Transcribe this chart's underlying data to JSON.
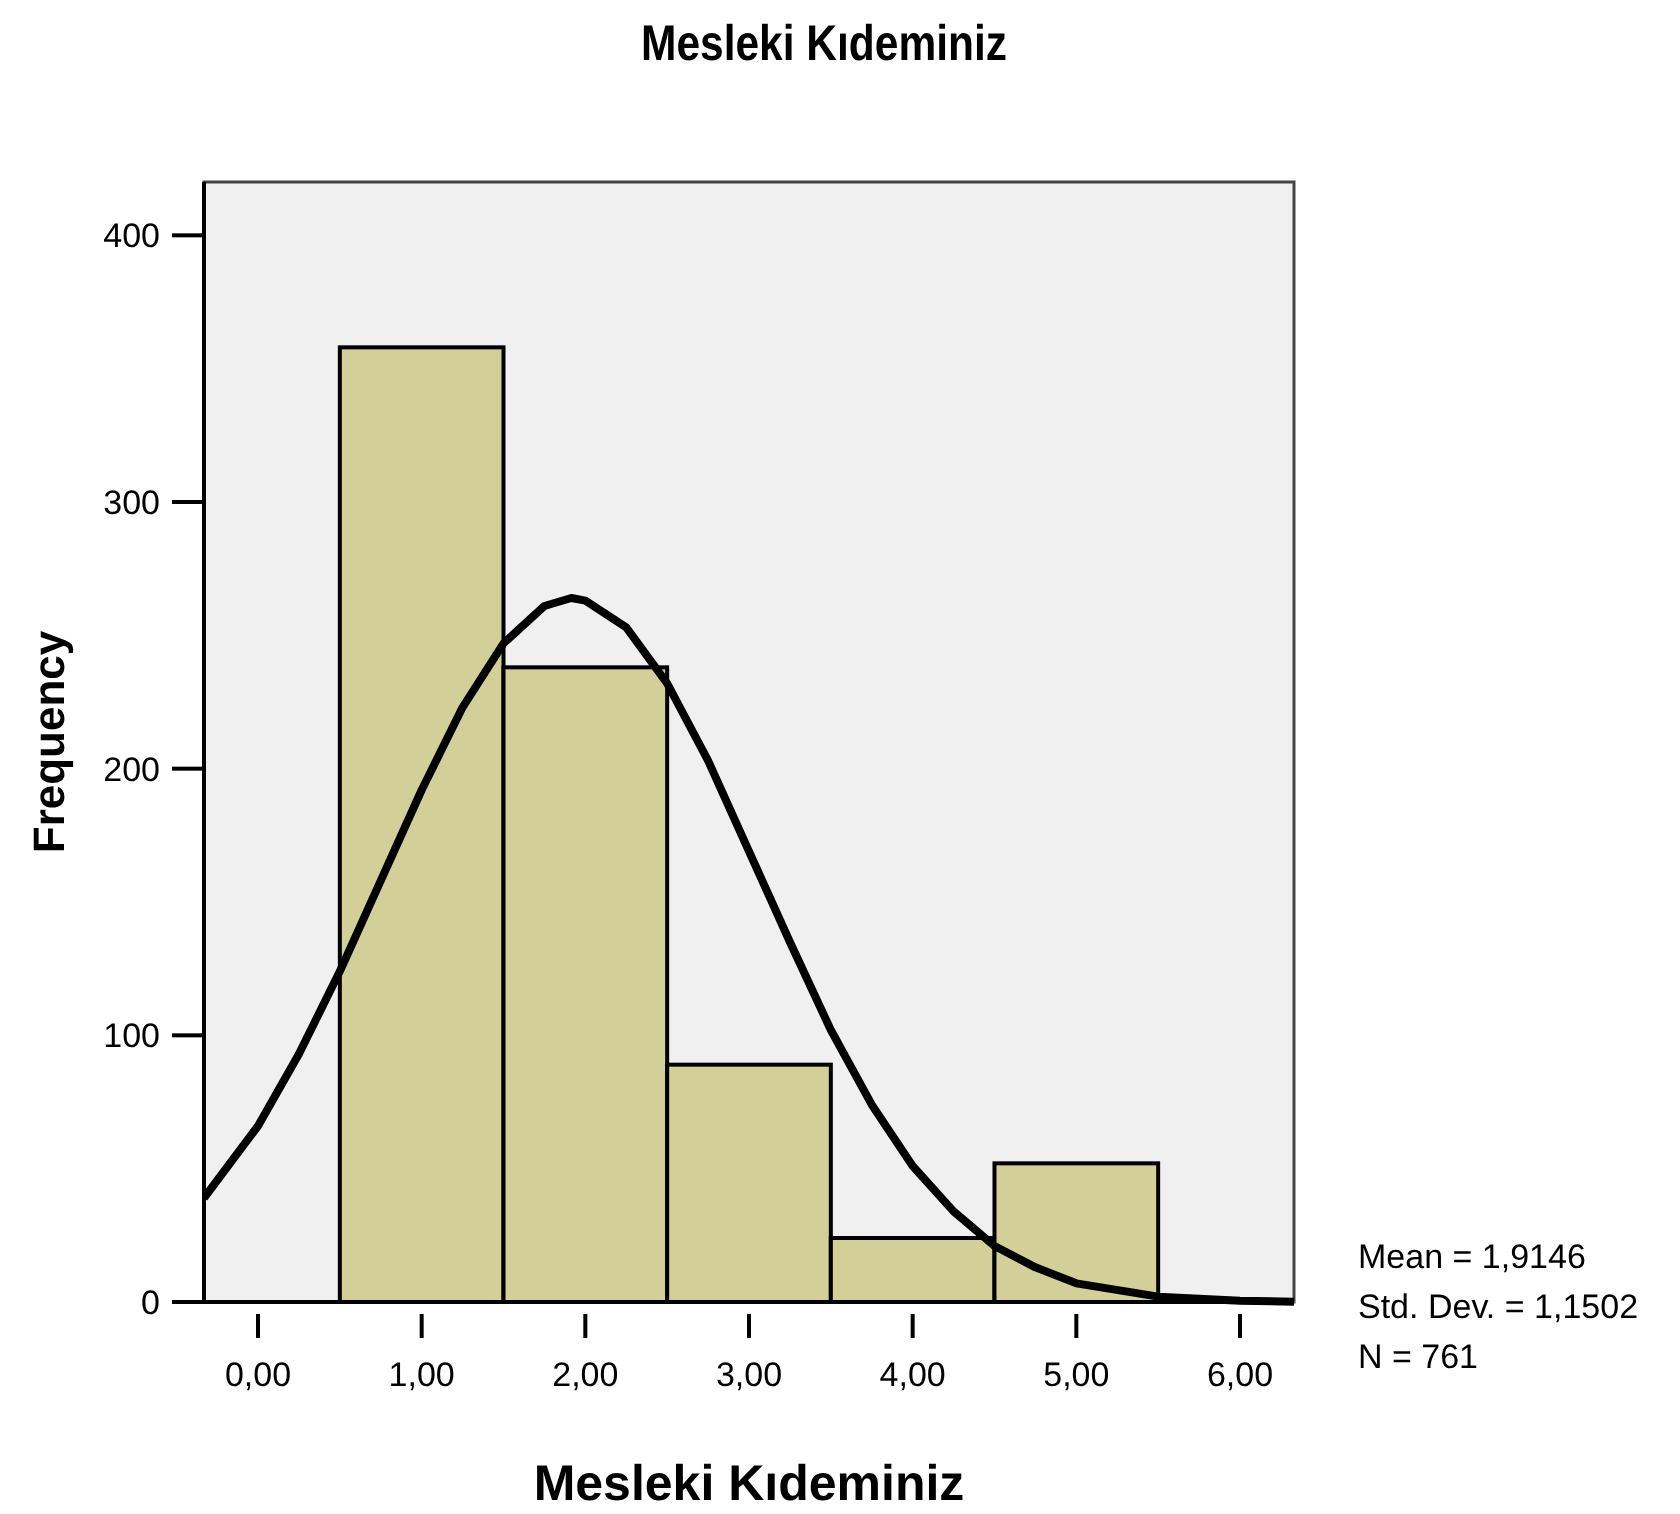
{
  "chart_data": {
    "type": "histogram",
    "title": "Mesleki Kıdeminiz",
    "xlabel": "Mesleki Kıdeminiz",
    "ylabel": "Frequency",
    "bins": [
      0.5,
      1.5,
      2.5,
      3.5,
      4.5,
      5.5
    ],
    "values": [
      358,
      238,
      89,
      24,
      52
    ],
    "color": "#d3cf98",
    "series": [
      {
        "type": "line",
        "color": "#000000",
        "x": [
          -0.33,
          0,
          0.25,
          0.5,
          0.75,
          1,
          1.25,
          1.5,
          1.75,
          1.9146,
          2,
          2.25,
          2.5,
          2.75,
          3,
          3.25,
          3.5,
          3.75,
          4,
          4.25,
          4.5,
          4.75,
          5,
          5.5,
          6,
          6.33
        ],
        "values": [
          39,
          66,
          93,
          124,
          158,
          192,
          223,
          247,
          261,
          264,
          263,
          253,
          232,
          203,
          169,
          135,
          102,
          74,
          51,
          34,
          21,
          13,
          7,
          2,
          0.5,
          0.1
        ]
      }
    ],
    "xlim": [
      -0.33,
      6.33
    ],
    "xticks": [
      {
        "value": 0,
        "label": "0,00"
      },
      {
        "value": 1,
        "label": "1,00"
      },
      {
        "value": 2,
        "label": "2,00"
      },
      {
        "value": 3,
        "label": "3,00"
      },
      {
        "value": 4,
        "label": "4,00"
      },
      {
        "value": 5,
        "label": "5,00"
      },
      {
        "value": 6,
        "label": "6,00"
      }
    ],
    "ylim": [
      0,
      420
    ],
    "yticks": [
      0,
      100,
      200,
      300,
      400
    ],
    "grid": false,
    "annotations": [
      "Mean = 1,9146",
      "Std. Dev. = 1,1502",
      "N = 761"
    ]
  }
}
